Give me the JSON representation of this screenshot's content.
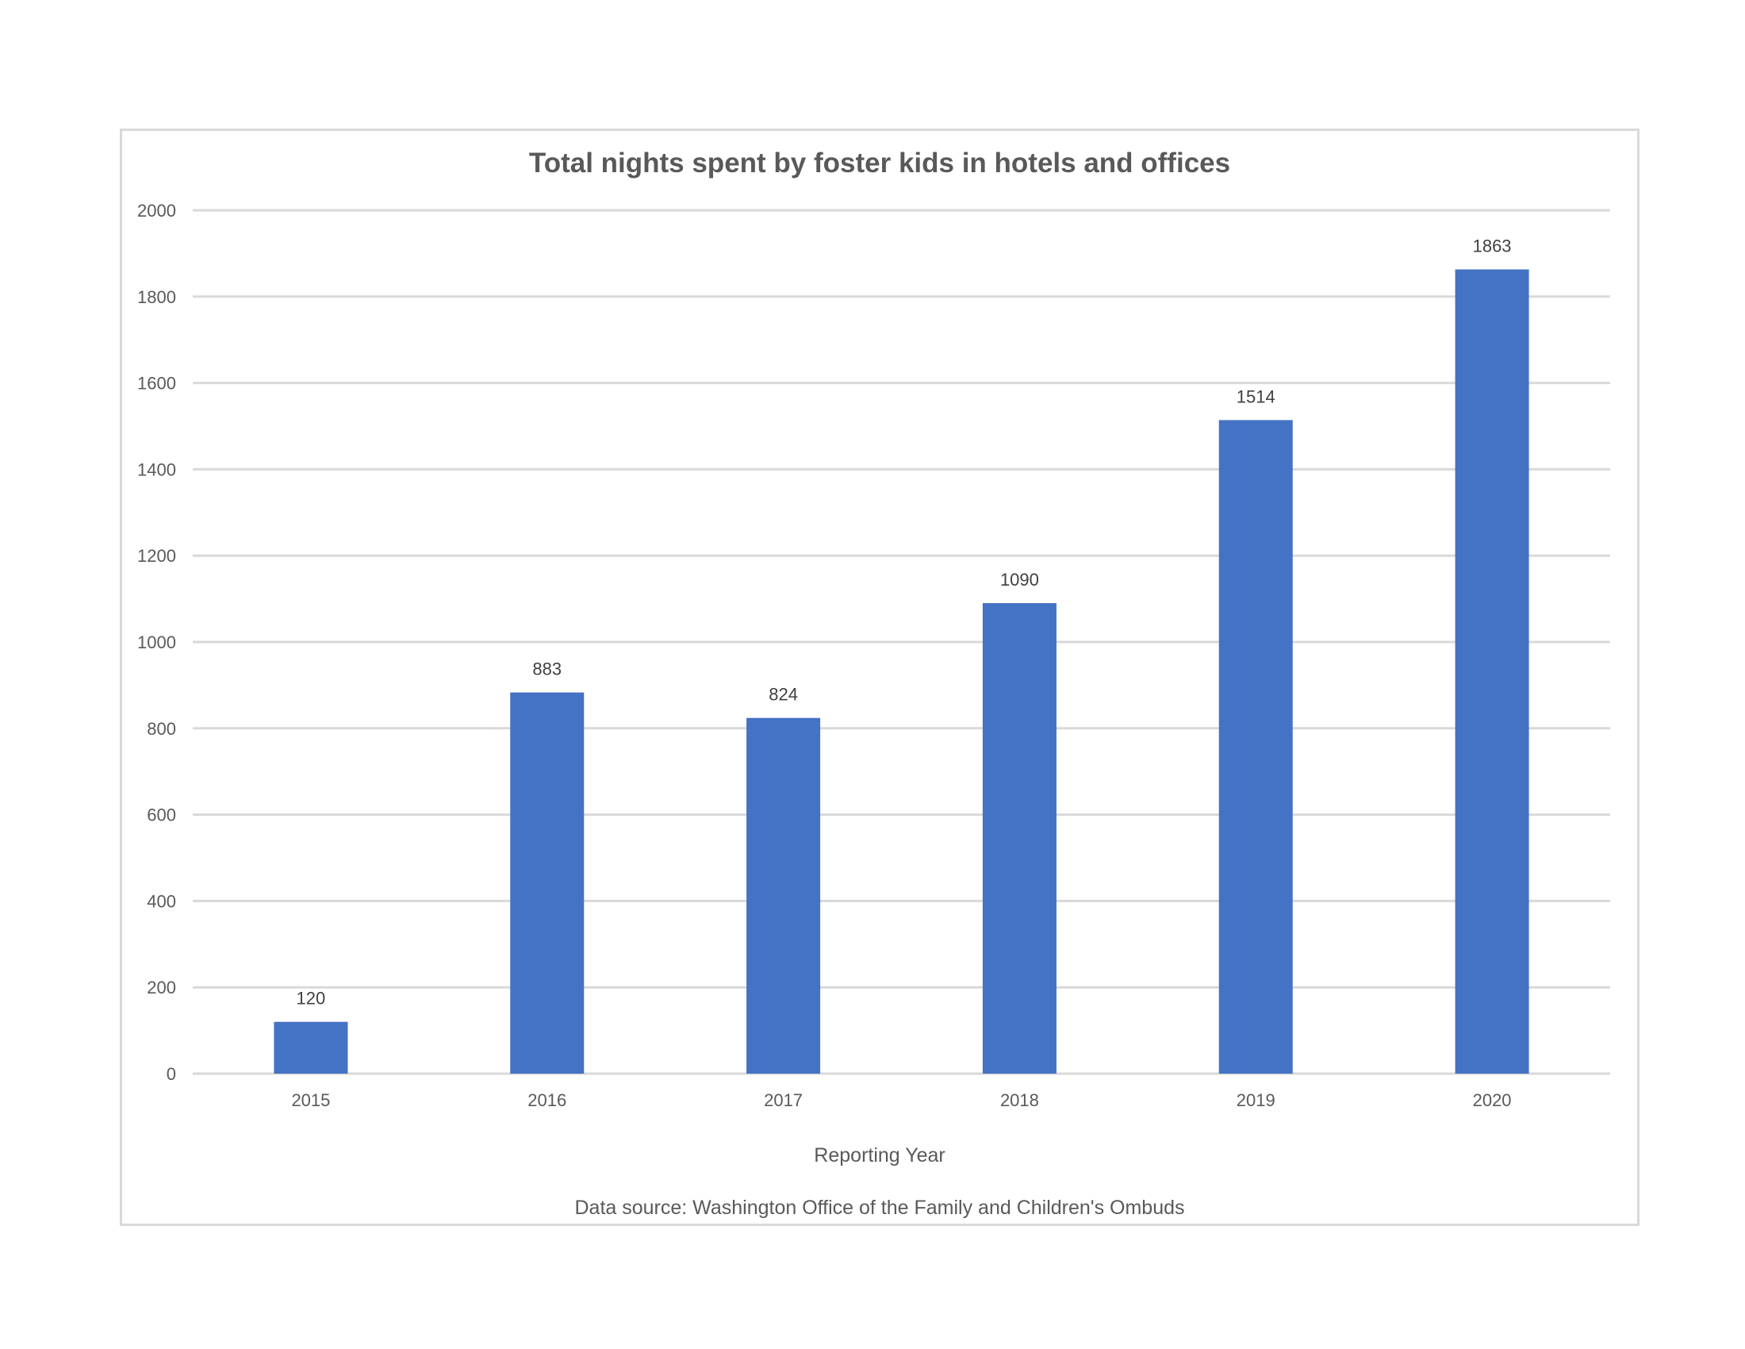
{
  "chart_data": {
    "type": "bar",
    "title": "Total nights spent by foster kids in hotels and offices",
    "xlabel": "Reporting Year",
    "ylabel": "",
    "categories": [
      "2015",
      "2016",
      "2017",
      "2018",
      "2019",
      "2020"
    ],
    "values": [
      120,
      883,
      824,
      1090,
      1514,
      1863
    ],
    "data_labels": [
      "120",
      "883",
      "824",
      "1090",
      "1514",
      "1863"
    ],
    "y_ticks": [
      "0",
      "200",
      "400",
      "600",
      "800",
      "1000",
      "1200",
      "1400",
      "1600",
      "1800",
      "2000"
    ],
    "ylim": [
      0,
      2000
    ],
    "grid": true,
    "legend": "none",
    "bar_color": "#4472c4",
    "gridline_color": "#d9d9d9",
    "text_color": "#595959",
    "source": "Data source: Washington Office of the Family and Children's Ombuds"
  }
}
